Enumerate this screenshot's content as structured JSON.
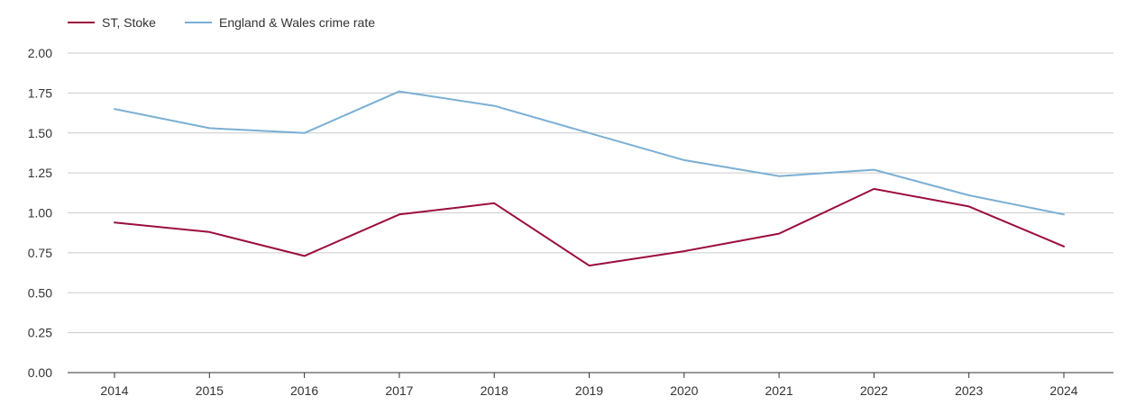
{
  "chart_data": {
    "type": "line",
    "title": "",
    "xlabel": "",
    "ylabel": "",
    "ylim": [
      0,
      2
    ],
    "yticks": [
      "0.00",
      "0.25",
      "0.50",
      "0.75",
      "1.00",
      "1.25",
      "1.50",
      "1.75",
      "2.00"
    ],
    "ytick_values": [
      0,
      0.25,
      0.5,
      0.75,
      1.0,
      1.25,
      1.5,
      1.75,
      2.0
    ],
    "categories": [
      "2014",
      "2015",
      "2016",
      "2017",
      "2018",
      "2019",
      "2020",
      "2021",
      "2022",
      "2023",
      "2024"
    ],
    "grid": true,
    "legend_position": "top-left",
    "series": [
      {
        "name": "ST, Stoke",
        "color": "#9b0d3a",
        "values": [
          0.94,
          0.88,
          0.73,
          0.99,
          1.06,
          0.67,
          0.76,
          0.87,
          1.15,
          1.04,
          0.79
        ]
      },
      {
        "name": "England & Wales crime rate",
        "color": "#7aafd4",
        "values": [
          1.65,
          1.53,
          1.5,
          1.76,
          1.67,
          1.5,
          1.33,
          1.23,
          1.27,
          1.11,
          0.99
        ]
      }
    ]
  }
}
